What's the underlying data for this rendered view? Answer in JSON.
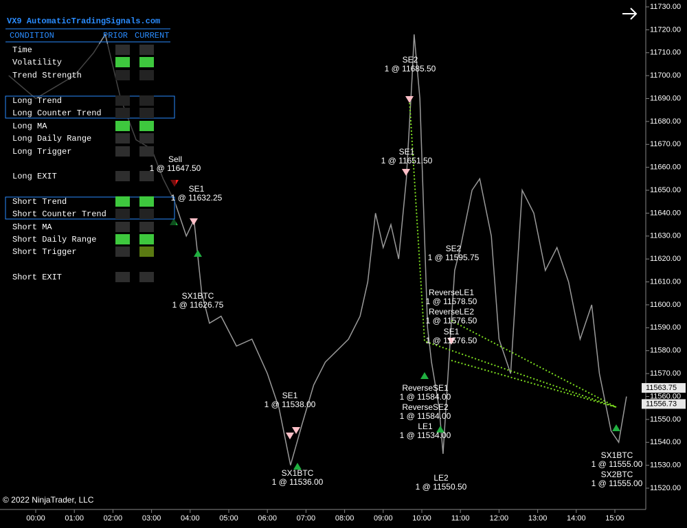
{
  "panel": {
    "title": "VX9 AutomaticTradingSignals.com",
    "headers": [
      "CONDITION",
      "PRIOR",
      "CURRENT"
    ],
    "rows": [
      {
        "name": "Time",
        "prior": "#2e2e2e",
        "current": "#2e2e2e"
      },
      {
        "name": "Volatility",
        "prior": "#3ec83e",
        "current": "#3ec83e"
      },
      {
        "name": "Trend Strength",
        "prior": "#232323",
        "current": "#232323"
      },
      {
        "name": "Long Trend",
        "prior": "#232323",
        "current": "#232323"
      },
      {
        "name": "Long Counter Trend",
        "prior": "#232323",
        "current": "#232323"
      },
      {
        "name": "Long MA",
        "prior": "#3ec83e",
        "current": "#3ec83e"
      },
      {
        "name": "Long Daily Range",
        "prior": "#2e2e2e",
        "current": "#2e2e2e"
      },
      {
        "name": "Long Trigger",
        "prior": "#2e2e2e",
        "current": "#2e2e2e"
      },
      {
        "name": "Long EXIT",
        "prior": "#2e2e2e",
        "current": "#2e2e2e"
      },
      {
        "name": "Short Trend",
        "prior": "#3ec83e",
        "current": "#3ec83e"
      },
      {
        "name": "Short Counter Trend",
        "prior": "#232323",
        "current": "#232323"
      },
      {
        "name": "Short MA",
        "prior": "#2e2e2e",
        "current": "#2e2e2e"
      },
      {
        "name": "Short Daily Range",
        "prior": "#3ec83e",
        "current": "#3ec83e"
      },
      {
        "name": "Short Trigger",
        "prior": "#2e2e2e",
        "current": "#5a7a12"
      },
      {
        "name": "Short EXIT",
        "prior": "#2e2e2e",
        "current": "#2e2e2e"
      }
    ]
  },
  "price_axis": {
    "range": [
      11520,
      11730
    ],
    "ticks": [
      {
        "value": 11520,
        "label": "11520.00"
      },
      {
        "value": 11530,
        "label": "11530.00"
      },
      {
        "value": 11540,
        "label": "11540.00"
      },
      {
        "value": 11550,
        "label": "11550.00"
      },
      {
        "value": 11560,
        "label": "11560.00"
      },
      {
        "value": 11570,
        "label": "11570.00"
      },
      {
        "value": 11580,
        "label": "11580.00"
      },
      {
        "value": 11590,
        "label": "11590.00"
      },
      {
        "value": 11600,
        "label": "11600.00"
      },
      {
        "value": 11610,
        "label": "11610.00"
      },
      {
        "value": 11620,
        "label": "11620.00"
      },
      {
        "value": 11630,
        "label": "11630.00"
      },
      {
        "value": 11640,
        "label": "11640.00"
      },
      {
        "value": 11650,
        "label": "11650.00"
      },
      {
        "value": 11660,
        "label": "11660.00"
      },
      {
        "value": 11670,
        "label": "11670.00"
      },
      {
        "value": 11680,
        "label": "11680.00"
      },
      {
        "value": 11690,
        "label": "11690.00"
      },
      {
        "value": 11700,
        "label": "11700.00"
      },
      {
        "value": 11710,
        "label": "11710.00"
      },
      {
        "value": 11720,
        "label": "11720.00"
      },
      {
        "value": 11730,
        "label": "11730.00"
      }
    ]
  },
  "time_axis": {
    "labels": [
      "00:00",
      "01:00",
      "02:00",
      "03:00",
      "04:00",
      "05:00",
      "06:00",
      "07:00",
      "08:00",
      "09:00",
      "10:00",
      "11:00",
      "12:00",
      "13:00",
      "14:00",
      "15:00"
    ]
  },
  "price_trace": {
    "color": "#9a9a9a",
    "x": [
      -0.7,
      0.0,
      0.5,
      1.0,
      1.5,
      1.8,
      2.2,
      2.6,
      3.0,
      3.3,
      3.6,
      3.9,
      4.1,
      4.3,
      4.5,
      4.8,
      5.2,
      5.6,
      6.0,
      6.3,
      6.6,
      6.9,
      7.2,
      7.5,
      7.8,
      8.1,
      8.4,
      8.6,
      8.8,
      9.0,
      9.2,
      9.4,
      9.6,
      9.75,
      9.8,
      9.95,
      10.05,
      10.15,
      10.25,
      10.45,
      10.55,
      10.7,
      10.85,
      11.0,
      11.3,
      11.5,
      11.8,
      12.0,
      12.3,
      12.6,
      12.9,
      13.2,
      13.5,
      13.8,
      14.1,
      14.4,
      14.6,
      14.9,
      15.1,
      15.3
    ],
    "values": [
      11700,
      11690,
      11695,
      11700,
      11710,
      11718,
      11690,
      11672,
      11668,
      11655,
      11645,
      11630,
      11637,
      11605,
      11592,
      11595,
      11582,
      11585,
      11570,
      11555,
      11530,
      11548,
      11565,
      11575,
      11580,
      11585,
      11595,
      11610,
      11640,
      11625,
      11635,
      11620,
      11655,
      11700,
      11718,
      11690,
      11640,
      11590,
      11575,
      11555,
      11535,
      11575,
      11615,
      11625,
      11650,
      11655,
      11630,
      11585,
      11570,
      11650,
      11640,
      11615,
      11625,
      11610,
      11585,
      11600,
      11570,
      11545,
      11540,
      11560
    ]
  },
  "annotations": [
    {
      "label": "SE2",
      "fill": "1 @ 11685.50"
    },
    {
      "label": "SE1",
      "fill": "1 @ 11651.50"
    },
    {
      "label": "Sell",
      "fill": "1 @ 11647.50"
    },
    {
      "label": "SE1",
      "fill": "1 @ 11632.25"
    },
    {
      "label": "SX1BTC",
      "fill": "1 @ 11626.75"
    },
    {
      "label": "SE2",
      "fill": "1 @ 11595.75"
    },
    {
      "label": "ReverseLE1",
      "fill": "1 @ 11578.50"
    },
    {
      "label": "ReverseLE2",
      "fill": "1 @ 11576.50"
    },
    {
      "label": "SE1",
      "fill": "1 @ 11576.50"
    },
    {
      "label": "ReverseSE1",
      "fill": "1 @ 11584.00"
    },
    {
      "label": "ReverseSE2",
      "fill": "1 @ 11584.00"
    },
    {
      "label": "LE1",
      "fill": "1 @ 11534.00"
    },
    {
      "label": "LE2",
      "fill": "1 @ 11550.50"
    },
    {
      "label": "SE1",
      "fill": "1 @ 11538.00"
    },
    {
      "label": "SX1BTC",
      "fill": "1 @ 11536.00"
    },
    {
      "label": "SX1BTC",
      "fill": "1 @ 11555.00"
    },
    {
      "label": "SX2BTC",
      "fill": "1 @ 11555.00"
    }
  ],
  "price_tags": [
    11563.75,
    11556.73
  ],
  "copyright": "© 2022 NinjaTrader, LLC"
}
